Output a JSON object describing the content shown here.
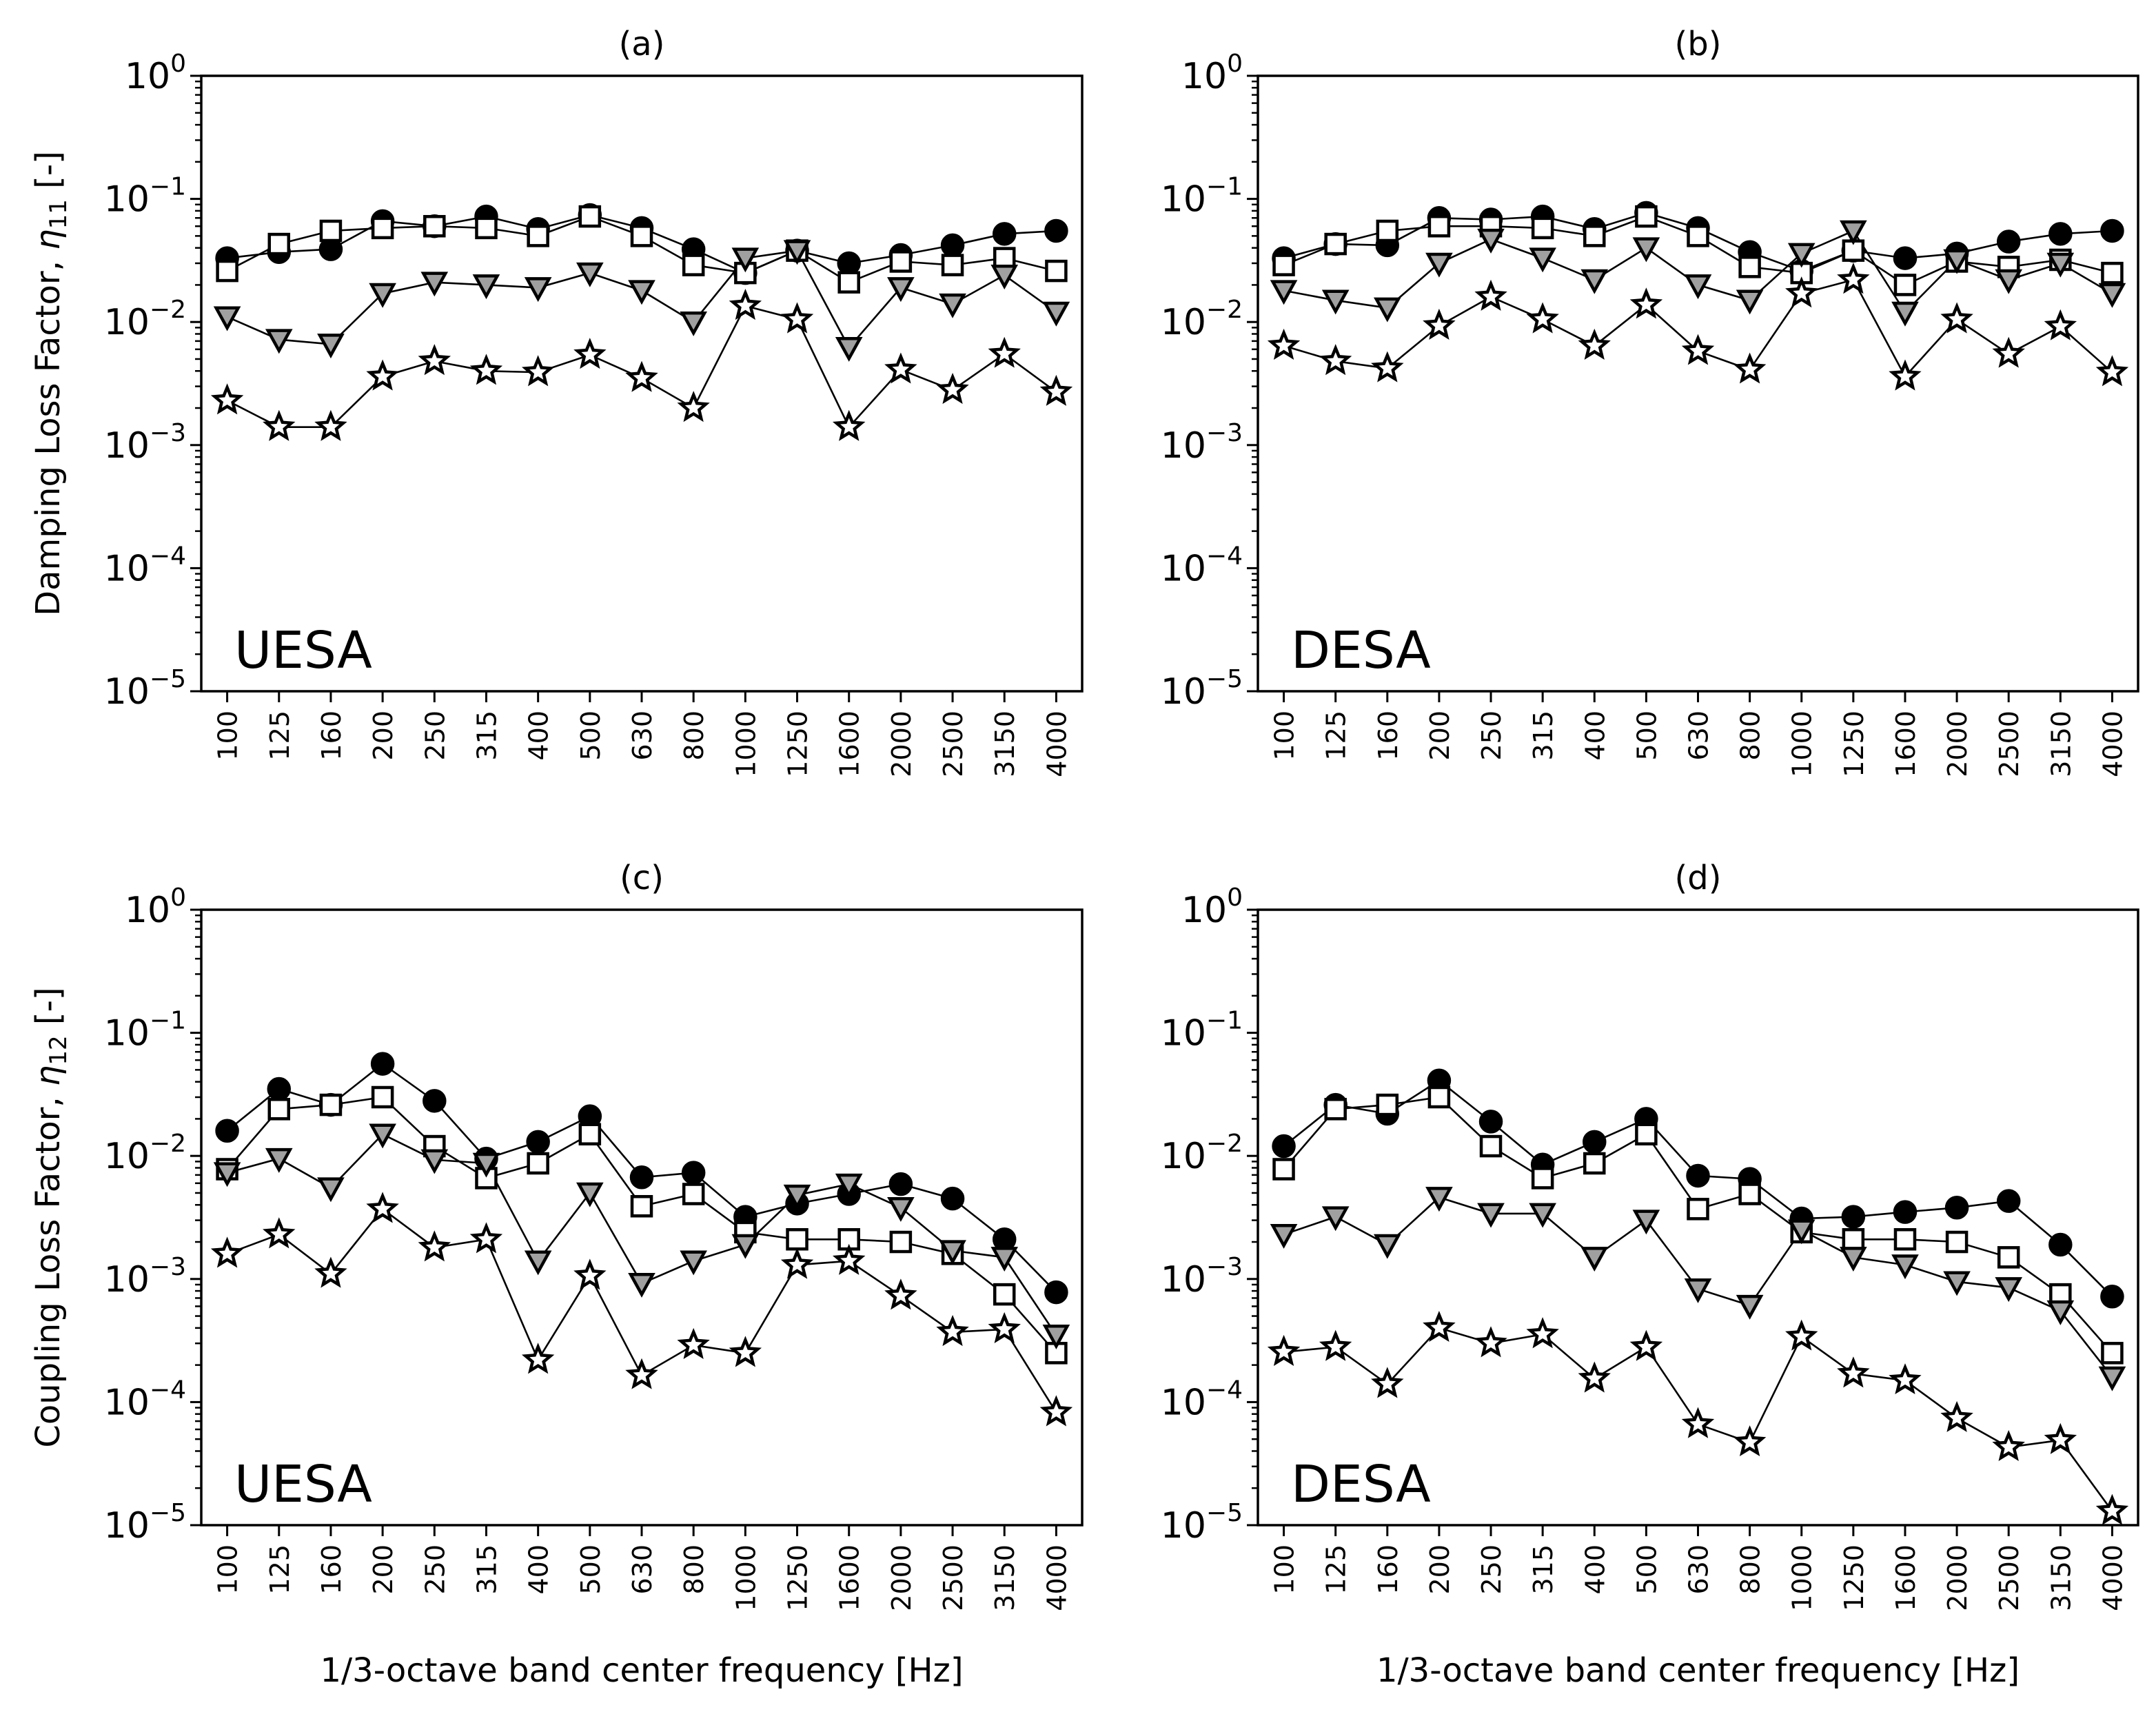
{
  "chart_data": [
    {
      "id": "a",
      "type": "line",
      "title": "(a)",
      "annotation": "UESA",
      "ylabel_main": "Damping Loss Factor, ",
      "ylabel_sym": "η",
      "ylabel_sub": "11",
      "ylabel_unit": " [-]",
      "xlabel": "",
      "yscale": "log",
      "ylim": [
        1e-05,
        1
      ],
      "categories": [
        "100",
        "125",
        "160",
        "200",
        "250",
        "315",
        "400",
        "500",
        "630",
        "800",
        "1000",
        "1250",
        "1600",
        "2000",
        "2500",
        "3150",
        "4000"
      ],
      "series": [
        {
          "name": "circle",
          "marker": "circle",
          "values": [
            0.033,
            0.037,
            0.039,
            0.066,
            0.06,
            0.072,
            0.057,
            0.074,
            0.058,
            0.039,
            0.025,
            0.038,
            0.03,
            0.035,
            0.042,
            0.052,
            0.055
          ]
        },
        {
          "name": "square",
          "marker": "square",
          "values": [
            0.026,
            0.043,
            0.055,
            0.058,
            0.06,
            0.058,
            0.05,
            0.072,
            0.05,
            0.029,
            0.025,
            0.038,
            0.021,
            0.031,
            0.029,
            0.033,
            0.026
          ]
        },
        {
          "name": "triangle",
          "marker": "triangle",
          "values": [
            0.011,
            0.0072,
            0.0066,
            0.017,
            0.021,
            0.02,
            0.019,
            0.025,
            0.018,
            0.01,
            0.033,
            0.038,
            0.0062,
            0.019,
            0.014,
            0.024,
            0.012
          ]
        },
        {
          "name": "star",
          "marker": "star",
          "values": [
            0.0023,
            0.0014,
            0.0014,
            0.0036,
            0.0048,
            0.004,
            0.0039,
            0.0054,
            0.0035,
            0.002,
            0.0135,
            0.0105,
            0.0014,
            0.0041,
            0.0028,
            0.0055,
            0.0027
          ]
        }
      ]
    },
    {
      "id": "b",
      "type": "line",
      "title": "(b)",
      "annotation": "DESA",
      "ylabel_main": "",
      "ylabel_sym": "",
      "ylabel_sub": "",
      "ylabel_unit": "",
      "xlabel": "",
      "yscale": "log",
      "ylim": [
        1e-05,
        1
      ],
      "categories": [
        "100",
        "125",
        "160",
        "200",
        "250",
        "315",
        "400",
        "500",
        "630",
        "800",
        "1000",
        "1250",
        "1600",
        "2000",
        "2500",
        "3150",
        "4000"
      ],
      "series": [
        {
          "name": "circle",
          "marker": "circle",
          "values": [
            0.033,
            0.043,
            0.042,
            0.07,
            0.068,
            0.072,
            0.057,
            0.077,
            0.058,
            0.037,
            0.026,
            0.038,
            0.033,
            0.036,
            0.045,
            0.052,
            0.055
          ]
        },
        {
          "name": "square",
          "marker": "square",
          "values": [
            0.029,
            0.043,
            0.055,
            0.06,
            0.06,
            0.058,
            0.05,
            0.072,
            0.05,
            0.028,
            0.025,
            0.038,
            0.02,
            0.031,
            0.028,
            0.032,
            0.025
          ]
        },
        {
          "name": "triangle",
          "marker": "triangle",
          "values": [
            0.018,
            0.015,
            0.013,
            0.03,
            0.047,
            0.033,
            0.022,
            0.04,
            0.02,
            0.015,
            0.036,
            0.055,
            0.012,
            0.032,
            0.022,
            0.03,
            0.017
          ]
        },
        {
          "name": "star",
          "marker": "star",
          "values": [
            0.0064,
            0.0048,
            0.0042,
            0.0093,
            0.016,
            0.0105,
            0.0064,
            0.0138,
            0.0058,
            0.0041,
            0.017,
            0.022,
            0.0036,
            0.0105,
            0.0055,
            0.0092,
            0.0039
          ]
        }
      ]
    },
    {
      "id": "c",
      "type": "line",
      "title": "(c)",
      "annotation": "UESA",
      "ylabel_main": "Coupling Loss Factor, ",
      "ylabel_sym": "η",
      "ylabel_sub": "12",
      "ylabel_unit": " [-]",
      "xlabel": "1/3-octave band center frequency [Hz]",
      "yscale": "log",
      "ylim": [
        1e-05,
        1
      ],
      "categories": [
        "100",
        "125",
        "160",
        "200",
        "250",
        "315",
        "400",
        "500",
        "630",
        "800",
        "1000",
        "1250",
        "1600",
        "2000",
        "2500",
        "3150",
        "4000"
      ],
      "series": [
        {
          "name": "circle",
          "marker": "circle",
          "values": [
            0.016,
            0.035,
            0.026,
            0.056,
            0.028,
            0.0095,
            0.013,
            0.021,
            0.0067,
            0.0073,
            0.0032,
            0.0041,
            0.0049,
            0.0059,
            0.0045,
            0.0021,
            0.00078
          ]
        },
        {
          "name": "square",
          "marker": "square",
          "values": [
            0.0078,
            0.024,
            0.026,
            0.03,
            0.012,
            0.0066,
            0.0087,
            0.015,
            0.0039,
            0.0049,
            0.0024,
            0.0021,
            0.0021,
            0.002,
            0.0016,
            0.00075,
            0.00025
          ]
        },
        {
          "name": "triangle",
          "marker": "triangle",
          "values": [
            0.0073,
            0.0095,
            0.0055,
            0.015,
            0.0093,
            0.0087,
            0.0014,
            0.005,
            0.00092,
            0.0014,
            0.0019,
            0.0048,
            0.0059,
            0.0038,
            0.0017,
            0.0015,
            0.00035
          ]
        },
        {
          "name": "star",
          "marker": "star",
          "values": [
            0.0016,
            0.0023,
            0.0011,
            0.0037,
            0.0018,
            0.0021,
            0.00022,
            0.00106,
            0.000165,
            0.00029,
            0.00025,
            0.0013,
            0.0014,
            0.00073,
            0.00037,
            0.00039,
            8.25e-05
          ]
        }
      ]
    },
    {
      "id": "d",
      "type": "line",
      "title": "(d)",
      "annotation": "DESA",
      "ylabel_main": "",
      "ylabel_sym": "",
      "ylabel_sub": "",
      "ylabel_unit": "",
      "xlabel": "1/3-octave band center frequency [Hz]",
      "yscale": "log",
      "ylim": [
        1e-05,
        1
      ],
      "categories": [
        "100",
        "125",
        "160",
        "200",
        "250",
        "315",
        "400",
        "500",
        "630",
        "800",
        "1000",
        "1250",
        "1600",
        "2000",
        "2500",
        "3150",
        "4000"
      ],
      "series": [
        {
          "name": "circle",
          "marker": "circle",
          "values": [
            0.012,
            0.026,
            0.022,
            0.041,
            0.019,
            0.0085,
            0.013,
            0.02,
            0.0069,
            0.0065,
            0.0031,
            0.0032,
            0.0035,
            0.0038,
            0.0043,
            0.0019,
            0.00072
          ]
        },
        {
          "name": "square",
          "marker": "square",
          "values": [
            0.0078,
            0.024,
            0.026,
            0.03,
            0.012,
            0.0066,
            0.0087,
            0.015,
            0.0037,
            0.0049,
            0.0024,
            0.0021,
            0.0021,
            0.002,
            0.0015,
            0.00075,
            0.00025
          ]
        },
        {
          "name": "triangle",
          "marker": "triangle",
          "values": [
            0.0023,
            0.0032,
            0.0019,
            0.0046,
            0.0034,
            0.0034,
            0.0015,
            0.003,
            0.00083,
            0.00061,
            0.0025,
            0.0015,
            0.0013,
            0.00095,
            0.00085,
            0.00055,
            0.00016
          ]
        },
        {
          "name": "star",
          "marker": "star",
          "values": [
            0.000255,
            0.00028,
            0.00014,
            0.0004,
            0.0003,
            0.000355,
            0.000155,
            0.00028,
            6.6e-05,
            4.7e-05,
            0.00034,
            0.00017,
            0.00015,
            7.4e-05,
            4.3e-05,
            4.9e-05,
            1.3e-05
          ]
        }
      ]
    }
  ],
  "ytick_base": "10",
  "yticks_exp": [
    "0",
    "−1",
    "−2",
    "−3",
    "−4",
    "−5"
  ]
}
